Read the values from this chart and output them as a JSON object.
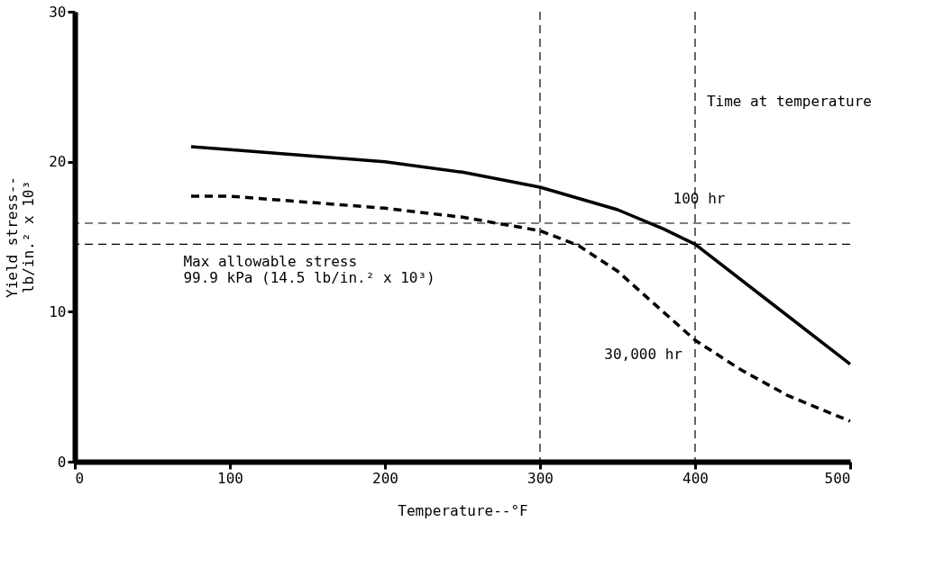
{
  "chart_data": {
    "type": "line",
    "xlabel": "Temperature--°F",
    "ylabel": "Yield stress--\nlb/in.² x 10³",
    "xlim": [
      0,
      500
    ],
    "xticks": [
      0,
      100,
      200,
      300,
      400,
      500
    ],
    "ylim": [
      0,
      30
    ],
    "yticks": [
      0,
      10,
      20,
      30
    ],
    "grid": false,
    "marker": "none",
    "series": [
      {
        "name": "100 hr",
        "color": "#000000",
        "line_style": "solid",
        "x": [
          75,
          100,
          150,
          200,
          250,
          300,
          350,
          380,
          400,
          450,
          500
        ],
        "values": [
          21.0,
          20.8,
          20.4,
          20.0,
          19.3,
          18.3,
          16.8,
          15.5,
          14.5,
          10.5,
          6.5
        ]
      },
      {
        "name": "30,000 hr",
        "color": "#000000",
        "line_style": "dashed",
        "x": [
          75,
          100,
          150,
          200,
          250,
          300,
          325,
          350,
          375,
          400,
          430,
          460,
          500
        ],
        "values": [
          17.7,
          17.7,
          17.3,
          16.9,
          16.3,
          15.4,
          14.4,
          12.7,
          10.4,
          8.1,
          6.1,
          4.4,
          2.7
        ]
      }
    ],
    "ref_lines": [
      {
        "axis": "y",
        "value": 14.5,
        "label": "Max allowable stress\n99.9 kPa (14.5 lb/in.² x 10³)",
        "line_style": "dashed"
      },
      {
        "axis": "y",
        "value": 15.9,
        "label": null,
        "line_style": "dashed"
      },
      {
        "axis": "x",
        "value": 300,
        "label": null,
        "line_style": "dashed"
      },
      {
        "axis": "x",
        "value": 400,
        "label": null,
        "line_style": "dashed"
      }
    ],
    "annotations": [
      "Time at temperature"
    ]
  }
}
